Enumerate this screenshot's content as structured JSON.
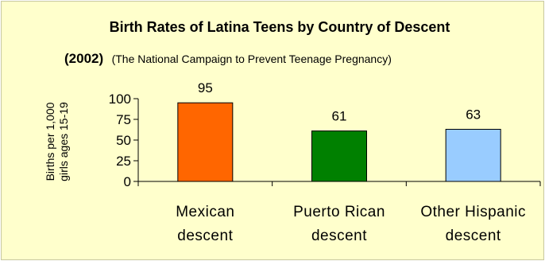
{
  "chart_data": {
    "type": "bar",
    "title": "Birth Rates of Latina Teens by Country of Descent",
    "subtitle_year": "(2002)",
    "subtitle_source": "(The National Campaign to Prevent Teenage Pregnancy)",
    "ylabel_line1": "Births per 1,000",
    "ylabel_line2": "girls ages 15-19",
    "ylim": [
      0,
      100
    ],
    "yticks": [
      0,
      25,
      50,
      75,
      100
    ],
    "categories": [
      [
        "Mexican",
        "descent"
      ],
      [
        "Puerto Rican",
        "descent"
      ],
      [
        "Other Hispanic",
        "descent"
      ]
    ],
    "values": [
      95,
      61,
      63
    ],
    "colors": [
      "#ff6600",
      "#008000",
      "#99ccff"
    ],
    "grid": false,
    "legend": "none"
  }
}
